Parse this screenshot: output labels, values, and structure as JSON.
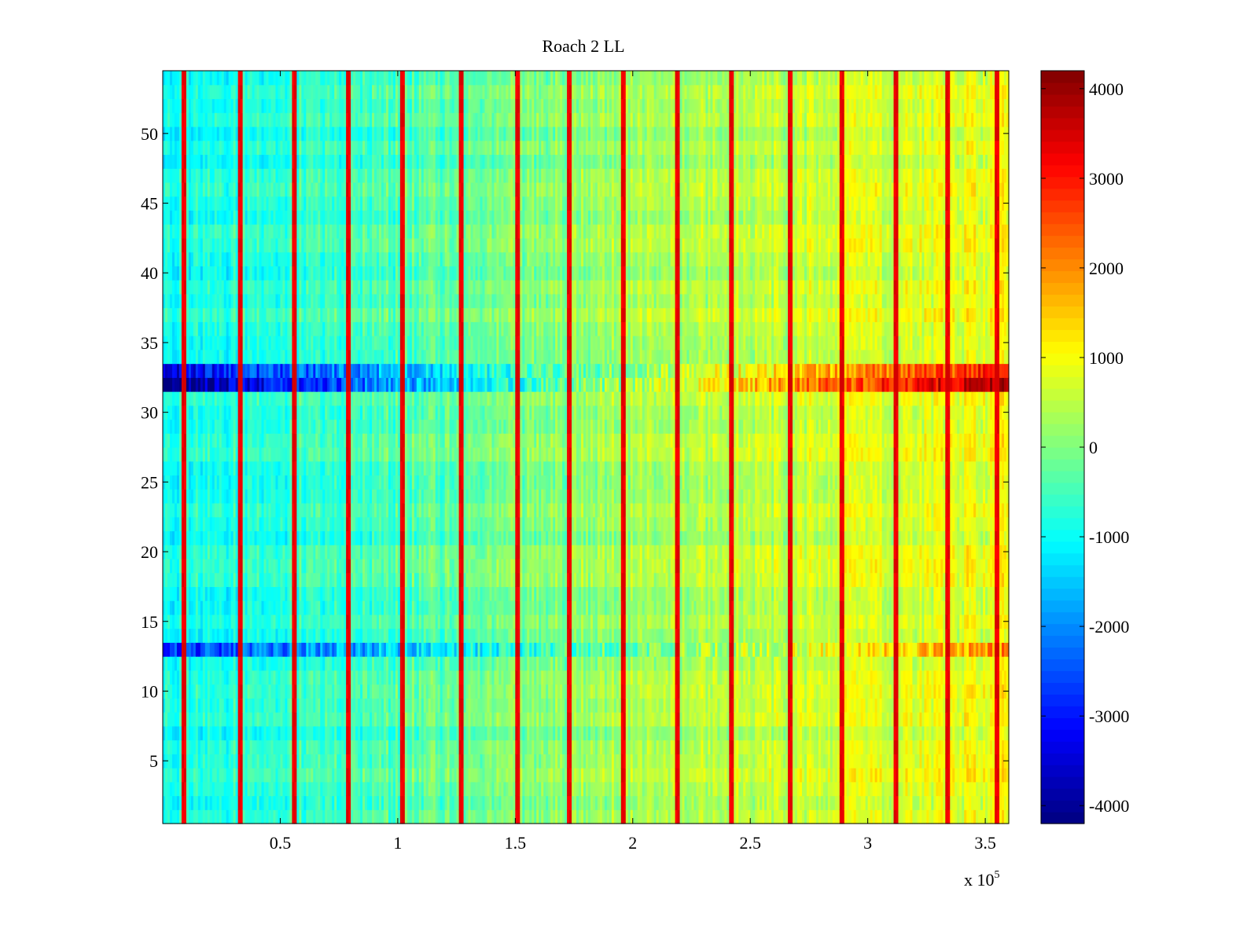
{
  "chart_data": {
    "type": "heatmap",
    "title": "Roach 2 LL",
    "xlabel": "",
    "ylabel": "",
    "x_multiplier_label": {
      "base": "x 10",
      "exponent": "5"
    },
    "xlim": [
      0,
      3.6
    ],
    "ylim": [
      0.5,
      54.5
    ],
    "x_ticks": [
      0.5,
      1,
      1.5,
      2,
      2.5,
      3,
      3.5
    ],
    "x_tick_labels": [
      "0.5",
      "1",
      "1.5",
      "2",
      "2.5",
      "3",
      "3.5"
    ],
    "y_ticks": [
      5,
      10,
      15,
      20,
      25,
      30,
      35,
      40,
      45,
      50
    ],
    "y_tick_labels": [
      "5",
      "10",
      "15",
      "20",
      "25",
      "30",
      "35",
      "40",
      "45",
      "50"
    ],
    "colorbar": {
      "colormap": "jet",
      "range": [
        -4200,
        4200
      ],
      "ticks": [
        -4000,
        -3000,
        -2000,
        -1000,
        0,
        1000,
        2000,
        3000,
        4000
      ],
      "tick_labels": [
        "-4000",
        "-3000",
        "-2000",
        "-1000",
        "0",
        "1000",
        "2000",
        "3000",
        "4000"
      ]
    },
    "rows": 54,
    "description_of_field": {
      "baseline_trend": {
        "x": [
          0,
          1.0,
          2.0,
          3.6
        ],
        "value": [
          -1000,
          -400,
          300,
          900
        ]
      },
      "spike_columns_x": [
        0.09,
        0.33,
        0.56,
        0.79,
        1.02,
        1.27,
        1.51,
        1.73,
        1.96,
        2.19,
        2.42,
        2.67,
        2.89,
        3.12,
        3.34,
        3.55
      ],
      "spike_value": 3500,
      "strong_rows": [
        {
          "row": 32,
          "start_value": -4200,
          "end_value": 4000
        },
        {
          "row": 33,
          "start_value": -3400,
          "end_value": 3000
        },
        {
          "row": 13,
          "start_value": -2800,
          "end_value": 2000
        }
      ]
    }
  }
}
